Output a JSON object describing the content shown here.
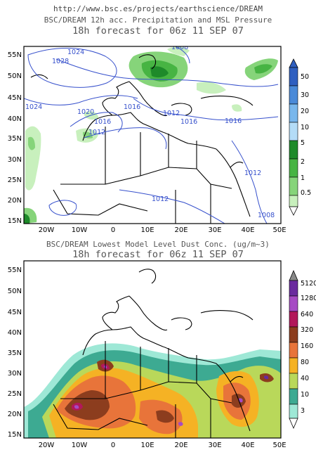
{
  "header": {
    "url": "http://www.bsc.es/projects/earthscience/DREAM"
  },
  "panels": [
    {
      "title": "BSC/DREAM 12h acc. Precipitation and MSL Pressure",
      "subtitle": "18h forecast for 06z 11 SEP 07",
      "lat_labels": [
        "55N",
        "50N",
        "45N",
        "40N",
        "35N",
        "30N",
        "25N",
        "20N",
        "15N"
      ],
      "lon_labels": [
        "20W",
        "10W",
        "0",
        "10E",
        "20E",
        "30E",
        "40E",
        "50E"
      ],
      "colorbar_labels": [
        "50",
        "30",
        "20",
        "10",
        "5",
        "2",
        "1",
        "0.5"
      ],
      "colorbar_colors": [
        "#2f5fc0",
        "#4a8ad8",
        "#79b7ec",
        "#b4dcf7",
        "#1e8a2a",
        "#47b443",
        "#86d47a",
        "#c8f0bd"
      ],
      "isobar_labels": [
        "1024",
        "1028",
        "1024",
        "1020",
        "1016",
        "1012",
        "1008",
        "1016",
        "1012",
        "1016",
        "1016",
        "1012",
        "1012",
        "1008"
      ]
    },
    {
      "title": "BSC/DREAM Lowest Model Level Dust Conc. (ug/m~3)",
      "subtitle": "18h forecast for 06z 11 SEP 07",
      "lat_labels": [
        "55N",
        "50N",
        "45N",
        "40N",
        "35N",
        "30N",
        "25N",
        "20N",
        "15N"
      ],
      "lon_labels": [
        "20W",
        "10W",
        "0",
        "10E",
        "20E",
        "30E",
        "40E",
        "50E"
      ],
      "colorbar_labels": [
        "5120",
        "1280",
        "640",
        "320",
        "160",
        "80",
        "40",
        "10",
        "3"
      ],
      "colorbar_colors": [
        "#6a2a9e",
        "#a64ac4",
        "#b2185a",
        "#8c3d1e",
        "#e8743a",
        "#f5b224",
        "#b9d85a",
        "#3daa92",
        "#9ee8d6"
      ]
    }
  ],
  "colors": {
    "isobar": "#3650cc",
    "coast": "#000000",
    "frame": "#000000",
    "sea": "#ffffff"
  }
}
